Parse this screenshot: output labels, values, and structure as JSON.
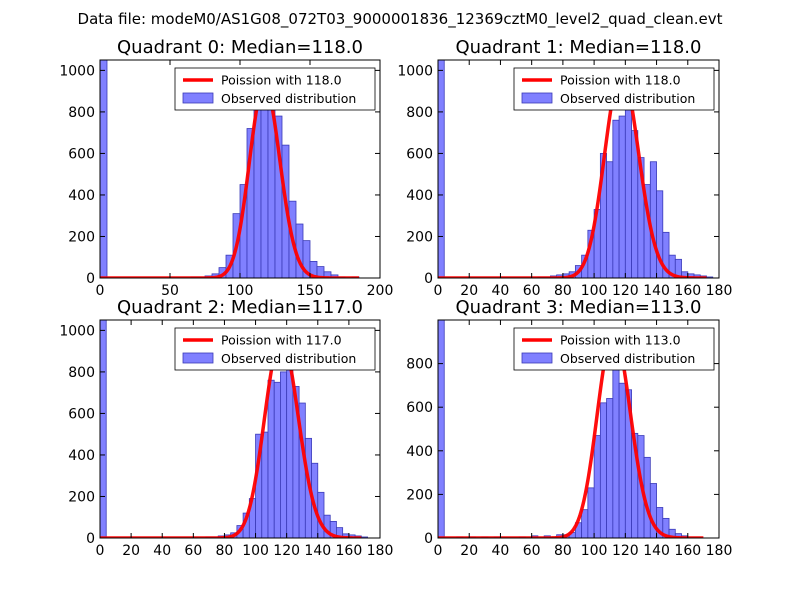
{
  "figure": {
    "suptitle": "Data file: modeM0/AS1G08_072T03_9000001836_12369cztM0_level2_quad_clean.evt"
  },
  "colors": {
    "bar_fill": "#8080ff",
    "bar_edge": "#3a3ab8",
    "poisson_line": "#ff0000",
    "axes": "#000000"
  },
  "chart_data": [
    {
      "type": "bar",
      "title": "Quadrant 0: Median=118.0",
      "xlim": [
        0,
        200
      ],
      "ylim": [
        0,
        1050
      ],
      "xticks": [
        0,
        50,
        100,
        150,
        200
      ],
      "yticks": [
        0,
        200,
        400,
        600,
        800,
        1000
      ],
      "bin_width": 5,
      "bins": [
        [
          0,
          1050
        ],
        [
          65,
          5
        ],
        [
          70,
          5
        ],
        [
          75,
          10
        ],
        [
          80,
          20
        ],
        [
          85,
          50
        ],
        [
          90,
          110
        ],
        [
          95,
          310
        ],
        [
          100,
          450
        ],
        [
          105,
          720
        ],
        [
          110,
          820
        ],
        [
          115,
          1000
        ],
        [
          120,
          860
        ],
        [
          125,
          780
        ],
        [
          130,
          640
        ],
        [
          135,
          370
        ],
        [
          140,
          260
        ],
        [
          145,
          180
        ],
        [
          150,
          80
        ],
        [
          155,
          55
        ],
        [
          160,
          30
        ],
        [
          165,
          15
        ],
        [
          170,
          5
        ],
        [
          180,
          5
        ]
      ],
      "poisson": {
        "mean": 118.0,
        "amplitude": 930,
        "x_range": [
          0,
          185
        ]
      },
      "legend": [
        {
          "type": "line",
          "label": "Poission with 118.0"
        },
        {
          "type": "patch",
          "label": "Observed distribution"
        }
      ]
    },
    {
      "type": "bar",
      "title": "Quadrant 1: Median=118.0",
      "xlim": [
        0,
        180
      ],
      "ylim": [
        0,
        1050
      ],
      "xticks": [
        0,
        20,
        40,
        60,
        80,
        100,
        120,
        140,
        160,
        180
      ],
      "yticks": [
        0,
        200,
        400,
        600,
        800,
        1000
      ],
      "bin_width": 4,
      "bins": [
        [
          0,
          1050
        ],
        [
          64,
          5
        ],
        [
          68,
          5
        ],
        [
          72,
          10
        ],
        [
          76,
          15
        ],
        [
          80,
          20
        ],
        [
          84,
          30
        ],
        [
          88,
          60
        ],
        [
          92,
          110
        ],
        [
          96,
          230
        ],
        [
          100,
          330
        ],
        [
          104,
          600
        ],
        [
          108,
          560
        ],
        [
          112,
          760
        ],
        [
          116,
          780
        ],
        [
          120,
          980
        ],
        [
          124,
          710
        ],
        [
          128,
          580
        ],
        [
          132,
          450
        ],
        [
          136,
          560
        ],
        [
          140,
          420
        ],
        [
          144,
          220
        ],
        [
          148,
          110
        ],
        [
          152,
          90
        ],
        [
          156,
          30
        ],
        [
          160,
          20
        ],
        [
          164,
          15
        ],
        [
          168,
          10
        ],
        [
          172,
          5
        ]
      ],
      "poisson": {
        "mean": 118.0,
        "amplitude": 990,
        "x_range": [
          0,
          172
        ]
      },
      "legend": [
        {
          "type": "line",
          "label": "Poission with 118.0"
        },
        {
          "type": "patch",
          "label": "Observed distribution"
        }
      ]
    },
    {
      "type": "bar",
      "title": "Quadrant 2: Median=117.0",
      "xlim": [
        0,
        180
      ],
      "ylim": [
        0,
        1050
      ],
      "xticks": [
        0,
        20,
        40,
        60,
        80,
        100,
        120,
        140,
        160,
        180
      ],
      "yticks": [
        0,
        200,
        400,
        600,
        800,
        1000
      ],
      "bin_width": 4,
      "bins": [
        [
          0,
          1050
        ],
        [
          68,
          5
        ],
        [
          72,
          5
        ],
        [
          76,
          10
        ],
        [
          80,
          15
        ],
        [
          84,
          25
        ],
        [
          88,
          60
        ],
        [
          92,
          120
        ],
        [
          96,
          190
        ],
        [
          100,
          500
        ],
        [
          104,
          510
        ],
        [
          108,
          760
        ],
        [
          112,
          750
        ],
        [
          116,
          800
        ],
        [
          120,
          930
        ],
        [
          124,
          730
        ],
        [
          128,
          650
        ],
        [
          132,
          480
        ],
        [
          136,
          360
        ],
        [
          140,
          220
        ],
        [
          144,
          110
        ],
        [
          148,
          80
        ],
        [
          152,
          50
        ],
        [
          156,
          20
        ],
        [
          160,
          15
        ],
        [
          164,
          10
        ],
        [
          168,
          5
        ]
      ],
      "poisson": {
        "mean": 117.0,
        "amplitude": 960,
        "x_range": [
          0,
          168
        ]
      },
      "legend": [
        {
          "type": "line",
          "label": "Poission with 117.0"
        },
        {
          "type": "patch",
          "label": "Observed distribution"
        }
      ]
    },
    {
      "type": "bar",
      "title": "Quadrant 3: Median=113.0",
      "xlim": [
        0,
        180
      ],
      "ylim": [
        0,
        1000
      ],
      "xticks": [
        0,
        20,
        40,
        60,
        80,
        100,
        120,
        140,
        160,
        180
      ],
      "yticks": [
        0,
        200,
        400,
        600,
        800
      ],
      "bin_width": 4,
      "bins": [
        [
          0,
          1000
        ],
        [
          12,
          5
        ],
        [
          20,
          5
        ],
        [
          28,
          5
        ],
        [
          36,
          5
        ],
        [
          52,
          5
        ],
        [
          60,
          10
        ],
        [
          68,
          10
        ],
        [
          72,
          5
        ],
        [
          76,
          15
        ],
        [
          80,
          15
        ],
        [
          84,
          25
        ],
        [
          88,
          70
        ],
        [
          92,
          130
        ],
        [
          96,
          230
        ],
        [
          100,
          470
        ],
        [
          104,
          620
        ],
        [
          108,
          640
        ],
        [
          112,
          930
        ],
        [
          116,
          710
        ],
        [
          120,
          680
        ],
        [
          124,
          480
        ],
        [
          128,
          470
        ],
        [
          132,
          370
        ],
        [
          136,
          250
        ],
        [
          140,
          140
        ],
        [
          144,
          90
        ],
        [
          148,
          40
        ],
        [
          152,
          20
        ],
        [
          156,
          10
        ]
      ],
      "poisson": {
        "mean": 113.0,
        "amplitude": 940,
        "x_range": [
          0,
          170
        ]
      },
      "legend": [
        {
          "type": "line",
          "label": "Poission with 113.0"
        },
        {
          "type": "patch",
          "label": "Observed distribution"
        }
      ]
    }
  ]
}
